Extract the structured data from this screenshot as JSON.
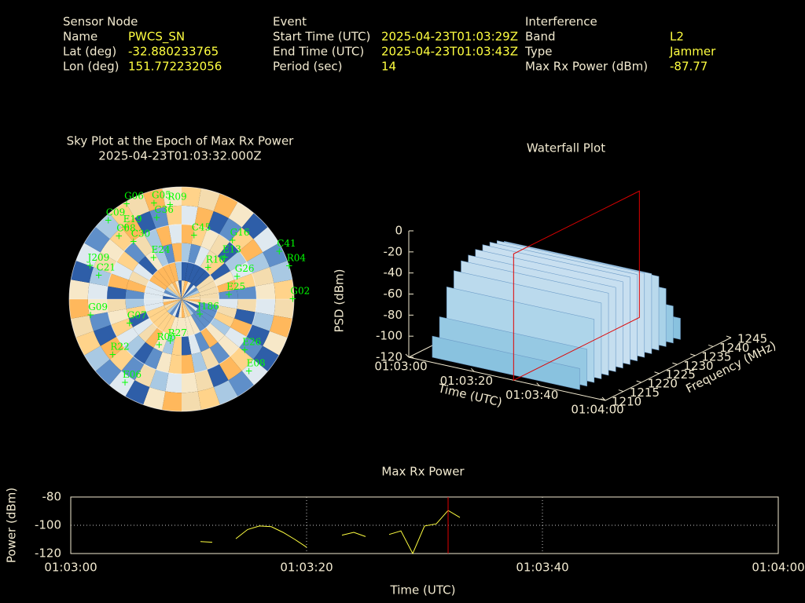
{
  "header": {
    "sensor": {
      "title": "Sensor Node",
      "rows": [
        [
          "Name",
          "PWCS_SN"
        ],
        [
          "Lat (deg)",
          "-32.880233765"
        ],
        [
          "Lon (deg)",
          "151.772232056"
        ]
      ]
    },
    "event": {
      "title": "Event",
      "rows": [
        [
          "Start Time (UTC)",
          "2025-04-23T01:03:29Z"
        ],
        [
          "End Time (UTC)",
          "2025-04-23T01:03:43Z"
        ],
        [
          "Period (sec)",
          "14"
        ]
      ]
    },
    "interference": {
      "title": "Interference",
      "rows": [
        [
          "Band",
          "L2"
        ],
        [
          "Type",
          "Jammer"
        ],
        [
          "Max Rx Power (dBm)",
          "-87.77"
        ]
      ]
    }
  },
  "chart_data": [
    {
      "type": "polar",
      "title": "Sky Plot at the Epoch of Max Rx Power",
      "subtitle": "2025-04-23T01:03:32.000Z",
      "color": "#00ff00",
      "elevation_lim": [
        0,
        90
      ],
      "labels": [
        "G06",
        "G05",
        "R09",
        "C36",
        "E19",
        "C09",
        "C08",
        "C30",
        "E24",
        "C45",
        "G16",
        "E13",
        "C41",
        "R04",
        "R16",
        "G26",
        "G02",
        "E25",
        "J186",
        "G09",
        "G07",
        "R27",
        "R06",
        "R22",
        "E26",
        "E08",
        "E06",
        "J209",
        "C21"
      ],
      "azimuth": [
        330,
        344,
        353,
        343,
        322,
        317,
        315,
        320,
        326,
        11,
        41,
        46,
        64,
        73,
        40,
        68,
        90,
        85,
        130,
        260,
        245,
        195,
        206,
        231,
        129,
        137,
        214,
        290,
        286
      ],
      "elevation": [
        2,
        10,
        14,
        22,
        17,
        4,
        19,
        30,
        50,
        38,
        28,
        42,
        3,
        0,
        57,
        42,
        1,
        52,
        71,
        16,
        44,
        55,
        49,
        19,
        25,
        11,
        9,
        12,
        21
      ]
    },
    {
      "type": "waterfall",
      "title": "Waterfall Plot",
      "xlabel": "Time (UTC)",
      "ylabel": "Frequency (MHz)",
      "zlabel": "PSD (dBm)",
      "xlim": [
        "01:03:00",
        "01:04:00"
      ],
      "xticks": [
        "01:03:00",
        "01:03:20",
        "01:03:40",
        "01:04:00"
      ],
      "ylim": [
        1210,
        1245
      ],
      "yticks": [
        1210,
        1215,
        1220,
        1225,
        1230,
        1235,
        1240,
        1245
      ],
      "zlim": [
        -120,
        0
      ],
      "zticks": [
        0,
        -20,
        -40,
        -60,
        -80,
        -100,
        -120
      ],
      "time_span": [
        "01:03:05",
        "01:03:50"
      ],
      "frequency": [
        1212,
        1214,
        1216,
        1218,
        1220,
        1222,
        1224,
        1226,
        1228,
        1230,
        1232,
        1234,
        1236,
        1238,
        1240
      ],
      "values": [
        -100,
        -85,
        -60,
        -48,
        -42,
        -40,
        -38,
        -37,
        -38,
        -40,
        -44,
        -50,
        -65,
        -85,
        -100
      ],
      "marker_x": "01:03:32",
      "marker_color": "#e00000"
    },
    {
      "type": "line",
      "title": "Max Rx Power",
      "xlabel": "Time (UTC)",
      "ylabel": "Power (dBm)",
      "xlim": [
        "01:03:00",
        "01:04:00"
      ],
      "xticks": [
        "01:03:00",
        "01:03:20",
        "01:03:40",
        "01:04:00"
      ],
      "ylim": [
        -120,
        -80
      ],
      "yticks": [
        -80,
        -100,
        -120
      ],
      "grid": true,
      "x": [
        "01:03:11",
        "01:03:12",
        "01:03:13",
        "01:03:14",
        "01:03:15",
        "01:03:16",
        "01:03:17",
        "01:03:18",
        "01:03:19",
        "01:03:20",
        "01:03:21",
        "01:03:22",
        "01:03:23",
        "01:03:24",
        "01:03:25",
        "01:03:26",
        "01:03:27",
        "01:03:28",
        "01:03:29",
        "01:03:30",
        "01:03:31",
        "01:03:32",
        "01:03:33"
      ],
      "series": [
        {
          "color": "#ffff40",
          "values": [
            -111.5,
            -112,
            null,
            -109.5,
            -103,
            -100.5,
            -101,
            -105,
            -110,
            -115.5,
            null,
            null,
            -107,
            -105,
            -108,
            null,
            -106.5,
            -104,
            -120,
            -100.5,
            -99,
            -89.5,
            -94.5
          ]
        }
      ],
      "marker_x": "01:03:32",
      "marker_color": "#e00000"
    }
  ]
}
